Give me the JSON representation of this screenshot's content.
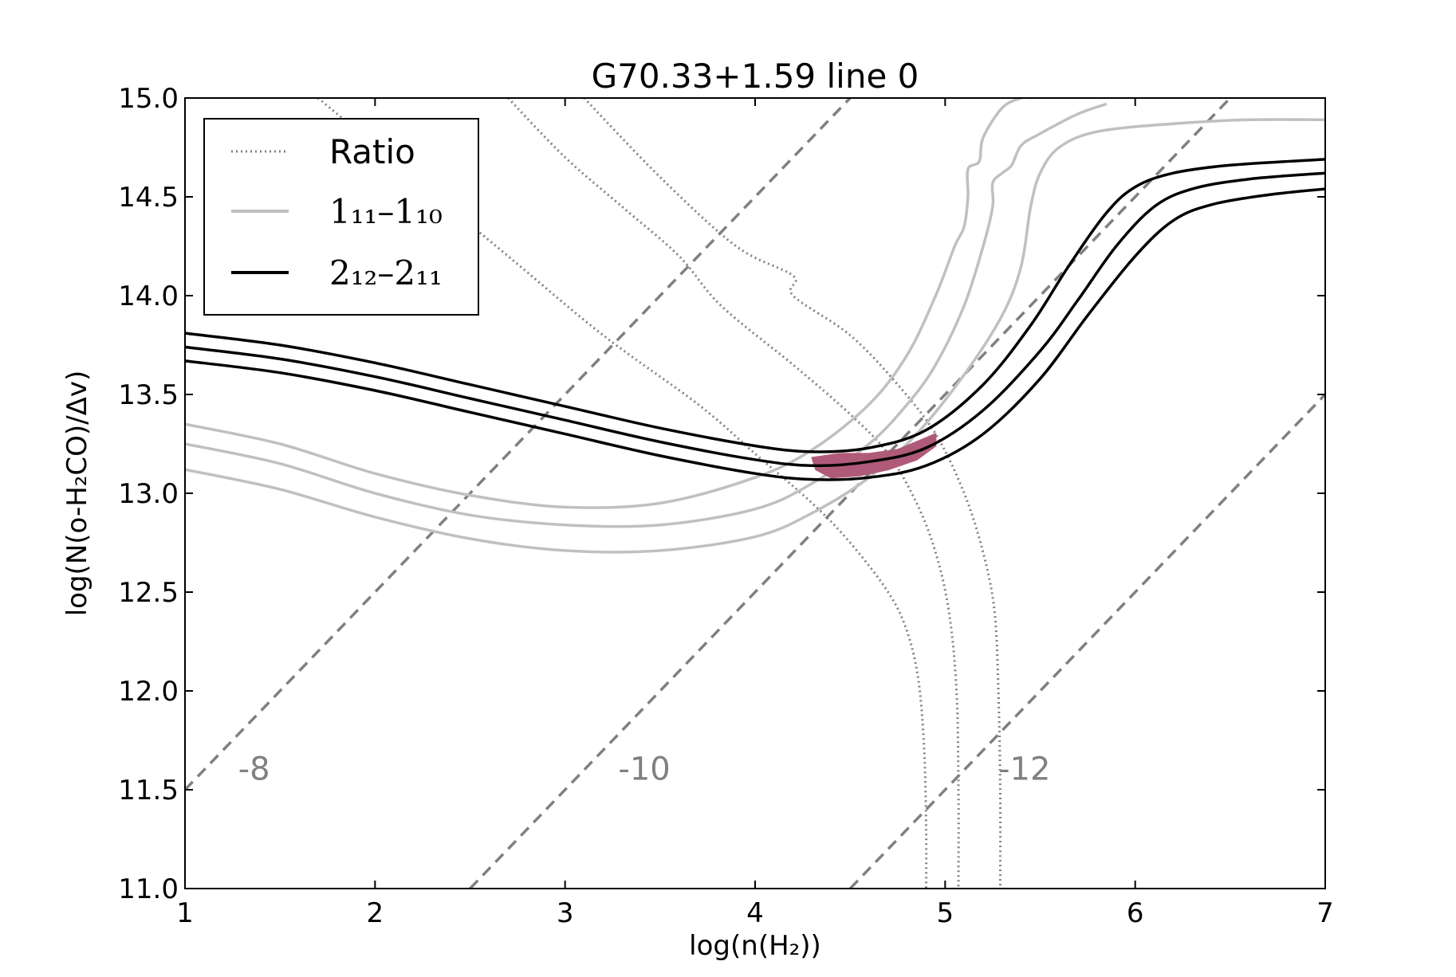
{
  "chart_data": {
    "type": "line",
    "title": "G70.33+1.59 line 0",
    "xlabel": "log(n(H₂))",
    "ylabel": "log(N(o-H₂CO)/Δv)",
    "xlim": [
      1,
      7
    ],
    "ylim": [
      11.0,
      15.0
    ],
    "xticks": [
      1,
      2,
      3,
      4,
      5,
      6,
      7
    ],
    "xtick_labels": [
      "1",
      "2",
      "3",
      "4",
      "5",
      "6",
      "7"
    ],
    "yticks": [
      11.0,
      11.5,
      12.0,
      12.5,
      13.0,
      13.5,
      14.0,
      14.5,
      15.0
    ],
    "ytick_labels": [
      "11.0",
      "11.5",
      "12.0",
      "12.5",
      "13.0",
      "13.5",
      "14.0",
      "14.5",
      "15.0"
    ],
    "grid": false,
    "legend": {
      "placement": "top-left",
      "entries": [
        {
          "label": "Ratio",
          "style": "dotted",
          "color": "#808080"
        },
        {
          "label": "1₁₁–1₁₀",
          "style": "solid",
          "color": "#c0c0c0"
        },
        {
          "label": "2₁₂–2₁₁",
          "style": "solid",
          "color": "#000000"
        }
      ]
    },
    "series": [
      {
        "group": "ratio",
        "color": "#808080",
        "style": "dotted",
        "x": [
          1.7,
          2.2,
          2.7,
          3.2,
          3.7,
          4.0,
          4.3,
          4.5,
          4.7,
          4.8,
          4.86,
          4.89,
          4.9,
          4.9
        ],
        "y": [
          15.0,
          14.6,
          14.2,
          13.8,
          13.45,
          13.2,
          12.95,
          12.75,
          12.5,
          12.3,
          12.05,
          11.7,
          11.3,
          11.0
        ]
      },
      {
        "group": "ratio",
        "color": "#808080",
        "style": "dotted",
        "x": [
          2.7,
          3.0,
          3.3,
          3.6,
          3.82,
          4.2,
          4.5,
          4.7,
          4.85,
          4.95,
          5.02,
          5.06,
          5.07,
          5.07
        ],
        "y": [
          15.0,
          14.7,
          14.45,
          14.2,
          13.95,
          13.65,
          13.4,
          13.2,
          12.95,
          12.7,
          12.4,
          12.0,
          11.5,
          11.0
        ]
      },
      {
        "group": "ratio",
        "color": "#808080",
        "style": "dotted",
        "x": [
          3.1,
          3.5,
          3.9,
          4.2,
          4.2,
          4.5,
          4.75,
          4.95,
          5.1,
          5.2,
          5.26,
          5.28,
          5.29,
          5.29
        ],
        "y": [
          15.0,
          14.6,
          14.25,
          14.1,
          14.0,
          13.8,
          13.55,
          13.3,
          13.0,
          12.7,
          12.4,
          12.0,
          11.5,
          11.0
        ]
      },
      {
        "group": "1_11-1_10",
        "color": "#c0c0c0",
        "style": "solid",
        "x": [
          1.0,
          1.5,
          2.0,
          2.5,
          3.0,
          3.5,
          4.0,
          4.3,
          4.6,
          4.8,
          4.95,
          5.05,
          5.1,
          5.12,
          5.12,
          5.18,
          5.2,
          5.3,
          5.4,
          5.45
        ],
        "y": [
          13.35,
          13.25,
          13.1,
          12.99,
          12.93,
          12.95,
          13.08,
          13.22,
          13.45,
          13.7,
          14.0,
          14.25,
          14.35,
          14.5,
          14.64,
          14.68,
          14.8,
          14.95,
          15.0,
          15.0
        ]
      },
      {
        "group": "1_11-1_10",
        "color": "#c0c0c0",
        "style": "solid",
        "x": [
          1.0,
          1.5,
          2.0,
          2.5,
          3.0,
          3.5,
          4.0,
          4.3,
          4.6,
          4.8,
          4.95,
          5.1,
          5.2,
          5.25,
          5.25,
          5.3,
          5.35,
          5.4,
          5.5,
          5.7,
          5.85
        ],
        "y": [
          13.25,
          13.15,
          13.0,
          12.89,
          12.84,
          12.84,
          12.92,
          13.05,
          13.25,
          13.45,
          13.65,
          13.95,
          14.25,
          14.45,
          14.57,
          14.62,
          14.66,
          14.76,
          14.82,
          14.92,
          14.97
        ]
      },
      {
        "group": "1_11-1_10",
        "color": "#c0c0c0",
        "style": "solid",
        "x": [
          1.0,
          1.5,
          2.0,
          2.5,
          3.0,
          3.5,
          4.0,
          4.3,
          4.6,
          4.85,
          5.1,
          5.3,
          5.4,
          5.45,
          5.5,
          5.6,
          5.8,
          6.2,
          6.6,
          7.0
        ],
        "y": [
          13.12,
          13.02,
          12.88,
          12.77,
          12.71,
          12.71,
          12.78,
          12.9,
          13.08,
          13.3,
          13.6,
          13.9,
          14.15,
          14.45,
          14.62,
          14.75,
          14.83,
          14.87,
          14.89,
          14.89
        ]
      },
      {
        "group": "2_12-2_11",
        "color": "#000000",
        "style": "solid",
        "x": [
          1.0,
          1.5,
          2.0,
          2.5,
          3.0,
          3.5,
          4.0,
          4.3,
          4.6,
          4.9,
          5.2,
          5.45,
          5.65,
          5.85,
          6.0,
          6.2,
          6.5,
          7.0
        ],
        "y": [
          13.81,
          13.75,
          13.66,
          13.55,
          13.44,
          13.33,
          13.24,
          13.21,
          13.23,
          13.32,
          13.55,
          13.85,
          14.15,
          14.42,
          14.55,
          14.62,
          14.66,
          14.69
        ]
      },
      {
        "group": "2_12-2_11",
        "color": "#000000",
        "style": "solid",
        "x": [
          1.0,
          1.5,
          2.0,
          2.5,
          3.0,
          3.5,
          4.0,
          4.3,
          4.6,
          4.9,
          5.2,
          5.5,
          5.7,
          5.9,
          6.1,
          6.3,
          6.6,
          7.0
        ],
        "y": [
          13.74,
          13.68,
          13.59,
          13.48,
          13.37,
          13.26,
          13.17,
          13.14,
          13.16,
          13.23,
          13.42,
          13.72,
          13.98,
          14.25,
          14.45,
          14.54,
          14.59,
          14.62
        ]
      },
      {
        "group": "2_12-2_11",
        "color": "#000000",
        "style": "solid",
        "x": [
          1.0,
          1.5,
          2.0,
          2.5,
          3.0,
          3.5,
          4.0,
          4.3,
          4.6,
          4.9,
          5.2,
          5.5,
          5.75,
          6.0,
          6.2,
          6.4,
          6.7,
          7.0
        ],
        "y": [
          13.67,
          13.61,
          13.52,
          13.41,
          13.3,
          13.19,
          13.1,
          13.07,
          13.08,
          13.14,
          13.3,
          13.58,
          13.9,
          14.2,
          14.38,
          14.46,
          14.51,
          14.54
        ]
      },
      {
        "group": "abundance",
        "label": "-8",
        "color": "#808080",
        "style": "dashed",
        "x": [
          1.0,
          4.5
        ],
        "y": [
          11.5,
          15.0
        ]
      },
      {
        "group": "abundance",
        "label": "-10",
        "color": "#808080",
        "style": "dashed",
        "x": [
          2.5,
          6.5
        ],
        "y": [
          11.0,
          15.0
        ]
      },
      {
        "group": "abundance",
        "label": "-12",
        "color": "#808080",
        "style": "dashed",
        "x": [
          4.5,
          7.0
        ],
        "y": [
          11.0,
          13.5
        ]
      }
    ],
    "annotations": [
      {
        "text": "-8",
        "x": 1.28,
        "y": 11.55
      },
      {
        "text": "-10",
        "x": 3.28,
        "y": 11.55
      },
      {
        "text": "-12",
        "x": 5.28,
        "y": 11.55
      }
    ],
    "fill_region": {
      "color": "#b05a7a",
      "x": [
        4.3,
        4.45,
        4.6,
        4.75,
        4.85,
        4.95,
        4.95,
        4.85,
        4.7,
        4.55,
        4.4,
        4.32
      ],
      "y": [
        13.18,
        13.2,
        13.2,
        13.22,
        13.26,
        13.3,
        13.24,
        13.17,
        13.12,
        13.09,
        13.08,
        13.12
      ]
    }
  }
}
